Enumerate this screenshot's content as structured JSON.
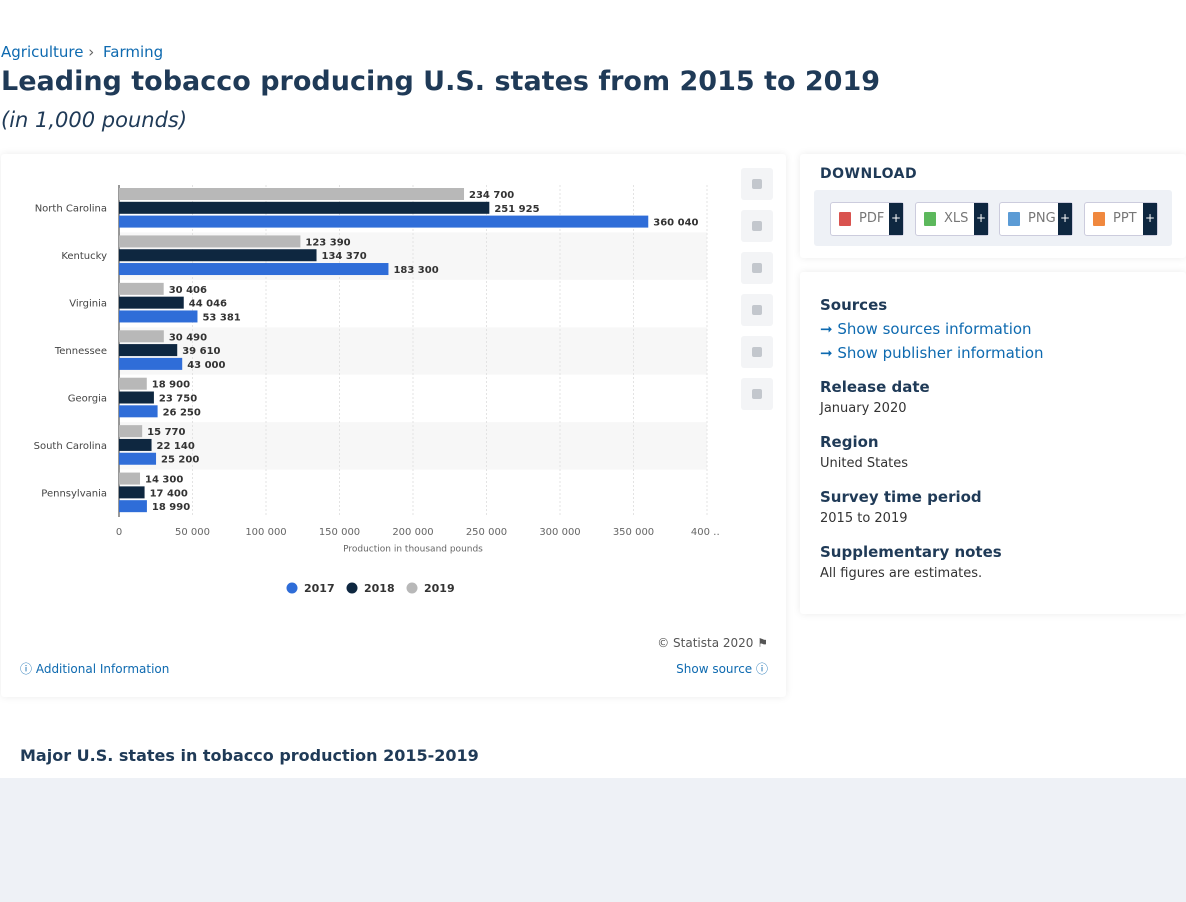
{
  "breadcrumb": [
    "Agriculture",
    "Farming"
  ],
  "header": {
    "title": "Leading tobacco producing U.S. states from 2015 to 2019",
    "subtitle": "(in 1,000 pounds)"
  },
  "chart_data": {
    "type": "hbar",
    "categories": [
      "North Carolina",
      "Kentucky",
      "Virginia",
      "Tennessee",
      "Georgia",
      "South Carolina",
      "Pennsylvania"
    ],
    "series": [
      {
        "name": "2017",
        "color": "#2f6dd8",
        "values": [
          360040,
          183300,
          53381,
          43000,
          26250,
          25200,
          18990
        ],
        "value_labels": [
          "360 040",
          "183 300",
          "53 381",
          "43 000",
          "26 250",
          "25 200",
          "18 990"
        ]
      },
      {
        "name": "2018",
        "color": "#0e2740",
        "values": [
          251925,
          134370,
          44046,
          39610,
          23750,
          22140,
          17400
        ],
        "value_labels": [
          "251 925",
          "134 370",
          "44 046",
          "39 610",
          "23 750",
          "22 140",
          "17 400"
        ]
      },
      {
        "name": "2019",
        "color": "#b8b8b8",
        "values": [
          234700,
          123390,
          30406,
          30490,
          18900,
          15770,
          14300
        ],
        "value_labels": [
          "234 700",
          "123 390",
          "30 406",
          "30 490",
          "18 900",
          "15 770",
          "14 300"
        ]
      }
    ],
    "xlim": [
      0,
      400000
    ],
    "xticks": [
      0,
      {
        "value": 50000,
        "label": "50 000"
      },
      {
        "value": 100000,
        "label": "100 000"
      },
      {
        "value": 150000,
        "label": "150 000"
      },
      {
        "value": 200000,
        "label": "200 000"
      },
      {
        "value": 250000,
        "label": "250 000"
      },
      {
        "value": 300000,
        "label": "300 000"
      },
      {
        "value": 350000,
        "label": "350 000"
      },
      {
        "value": 400000,
        "label": "400 …"
      }
    ],
    "x_label": "Production in thousand pounds",
    "grid": true
  },
  "chart_footer": {
    "copyright": "© Statista 2020",
    "additional": "Additional Information",
    "show_source": "Show source"
  },
  "sidebar": {
    "download": {
      "title": "DOWNLOAD",
      "formats": [
        "PDF",
        "XLS",
        "PNG",
        "PPT"
      ],
      "plus": "+"
    },
    "sources": {
      "title": "Sources",
      "links": [
        "Show sources information",
        "Show publisher information"
      ]
    },
    "details": [
      {
        "label": "Release date",
        "value": "January 2020"
      },
      {
        "label": "Region",
        "value": "United States"
      },
      {
        "label": "Survey time period",
        "value": "2015 to 2019"
      },
      {
        "label": "Supplementary notes",
        "value": "All figures are estimates."
      }
    ]
  },
  "related": {
    "title": "Major U.S. states in tobacco production 2015-2019"
  }
}
